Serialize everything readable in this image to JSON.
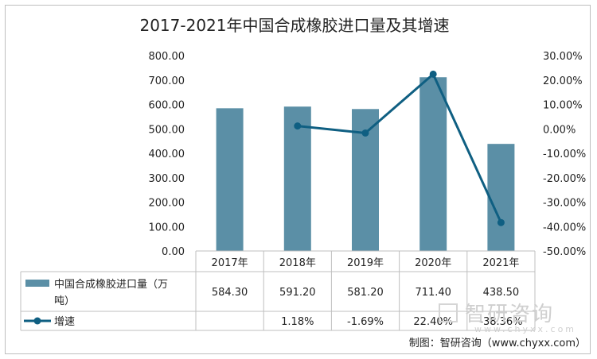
{
  "chart_data": {
    "type": "bar+line",
    "title": "2017-2021年中国合成橡胶进口量及其增速",
    "categories": [
      "2017年",
      "2018年",
      "2019年",
      "2020年",
      "2021年"
    ],
    "series": [
      {
        "name": "中国合成橡胶进口量（万吨）",
        "type": "bar",
        "axis": "left",
        "color": "#5b8fa6",
        "values": [
          584.3,
          591.2,
          581.2,
          711.4,
          438.5
        ],
        "labels": [
          "584.30",
          "591.20",
          "581.20",
          "711.40",
          "438.50"
        ]
      },
      {
        "name": "增速",
        "type": "line",
        "axis": "right",
        "color": "#0f5f82",
        "values": [
          null,
          1.18,
          -1.69,
          22.4,
          -38.36
        ],
        "labels": [
          "",
          "1.18%",
          "-1.69%",
          "22.40%",
          "-38.36%"
        ]
      }
    ],
    "y_left": {
      "min": 0,
      "max": 800,
      "step": 100,
      "ticks": [
        "0.00",
        "100.00",
        "200.00",
        "300.00",
        "400.00",
        "500.00",
        "600.00",
        "700.00",
        "800.00"
      ]
    },
    "y_right": {
      "min": -50,
      "max": 30,
      "step": 10,
      "ticks": [
        "-50.00%",
        "-40.00%",
        "-30.00%",
        "-20.00%",
        "-10.00%",
        "0.00%",
        "10.00%",
        "20.00%",
        "30.00%"
      ]
    },
    "legend": "data-table-below",
    "grid": false
  },
  "source": "制图：智研咨询（www.chyxx.com）",
  "watermark": {
    "brand": "智研咨询",
    "url": "www.chyxx.com"
  },
  "colors": {
    "bar": "#5b8fa6",
    "line": "#0f5f82",
    "table_border": "#bfbfbf"
  }
}
